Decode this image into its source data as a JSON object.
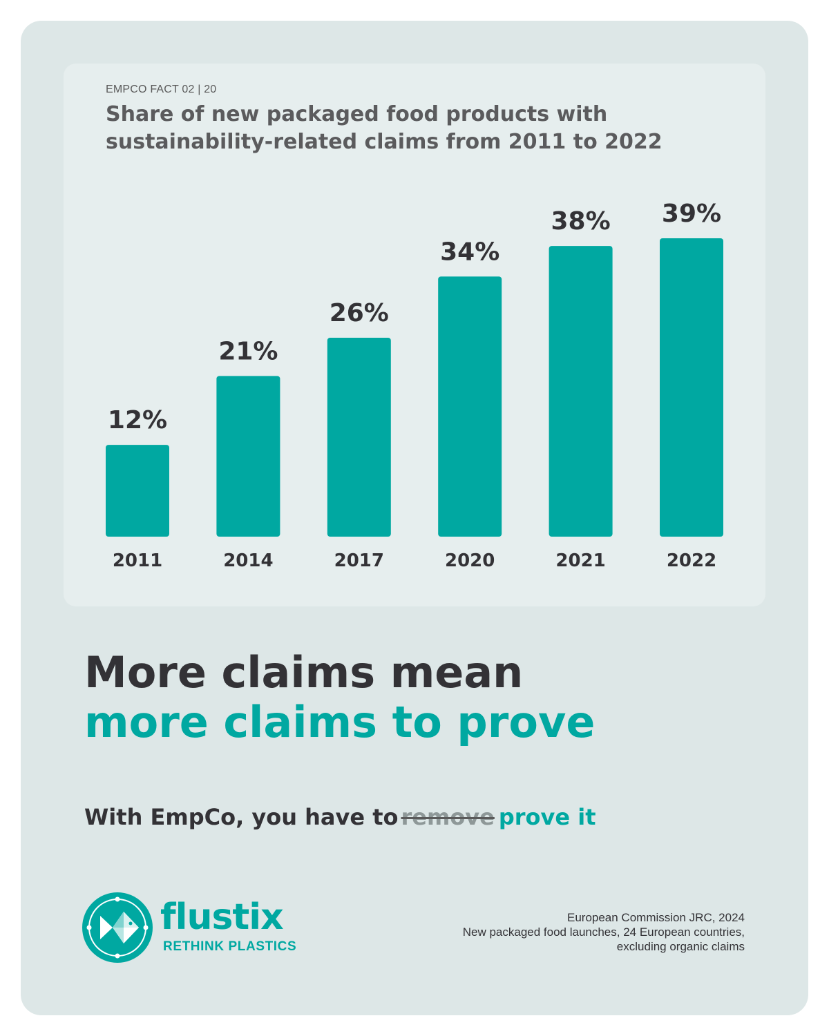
{
  "kicker": "EMPCO FACT 02 | 20",
  "title_lines": [
    "Share of new packaged food products with",
    "sustainability-related claims from 2011 to 2022"
  ],
  "chart_data": {
    "type": "bar",
    "title": "Share of new packaged food products with sustainability-related claims from 2011 to 2022",
    "categories": [
      "2011",
      "2014",
      "2017",
      "2020",
      "2021",
      "2022"
    ],
    "values": [
      12,
      21,
      26,
      34,
      38,
      39
    ],
    "value_labels": [
      "12%",
      "21%",
      "26%",
      "34%",
      "38%",
      "39%"
    ],
    "ylim": [
      0,
      39
    ],
    "grid": false,
    "bar_color": "#00a8a1"
  },
  "headline": {
    "line1": "More claims mean",
    "line2": "more claims to prove"
  },
  "tagline": {
    "prefix": "With EmpCo, you have to",
    "struck": "remove",
    "accent": "prove it"
  },
  "logo": {
    "word": "flustix",
    "tag": "RETHINK PLASTICS",
    "icon": "fish-logo-icon"
  },
  "source_lines": [
    "European Commission JRC, 2024",
    "New packaged food launches, 24 European countries,",
    "excluding organic claims"
  ],
  "colors": {
    "accent": "#00a8a1",
    "dark_text": "#333236",
    "card_bg": "#dde7e7",
    "panel_bg": "#e6eeee"
  }
}
